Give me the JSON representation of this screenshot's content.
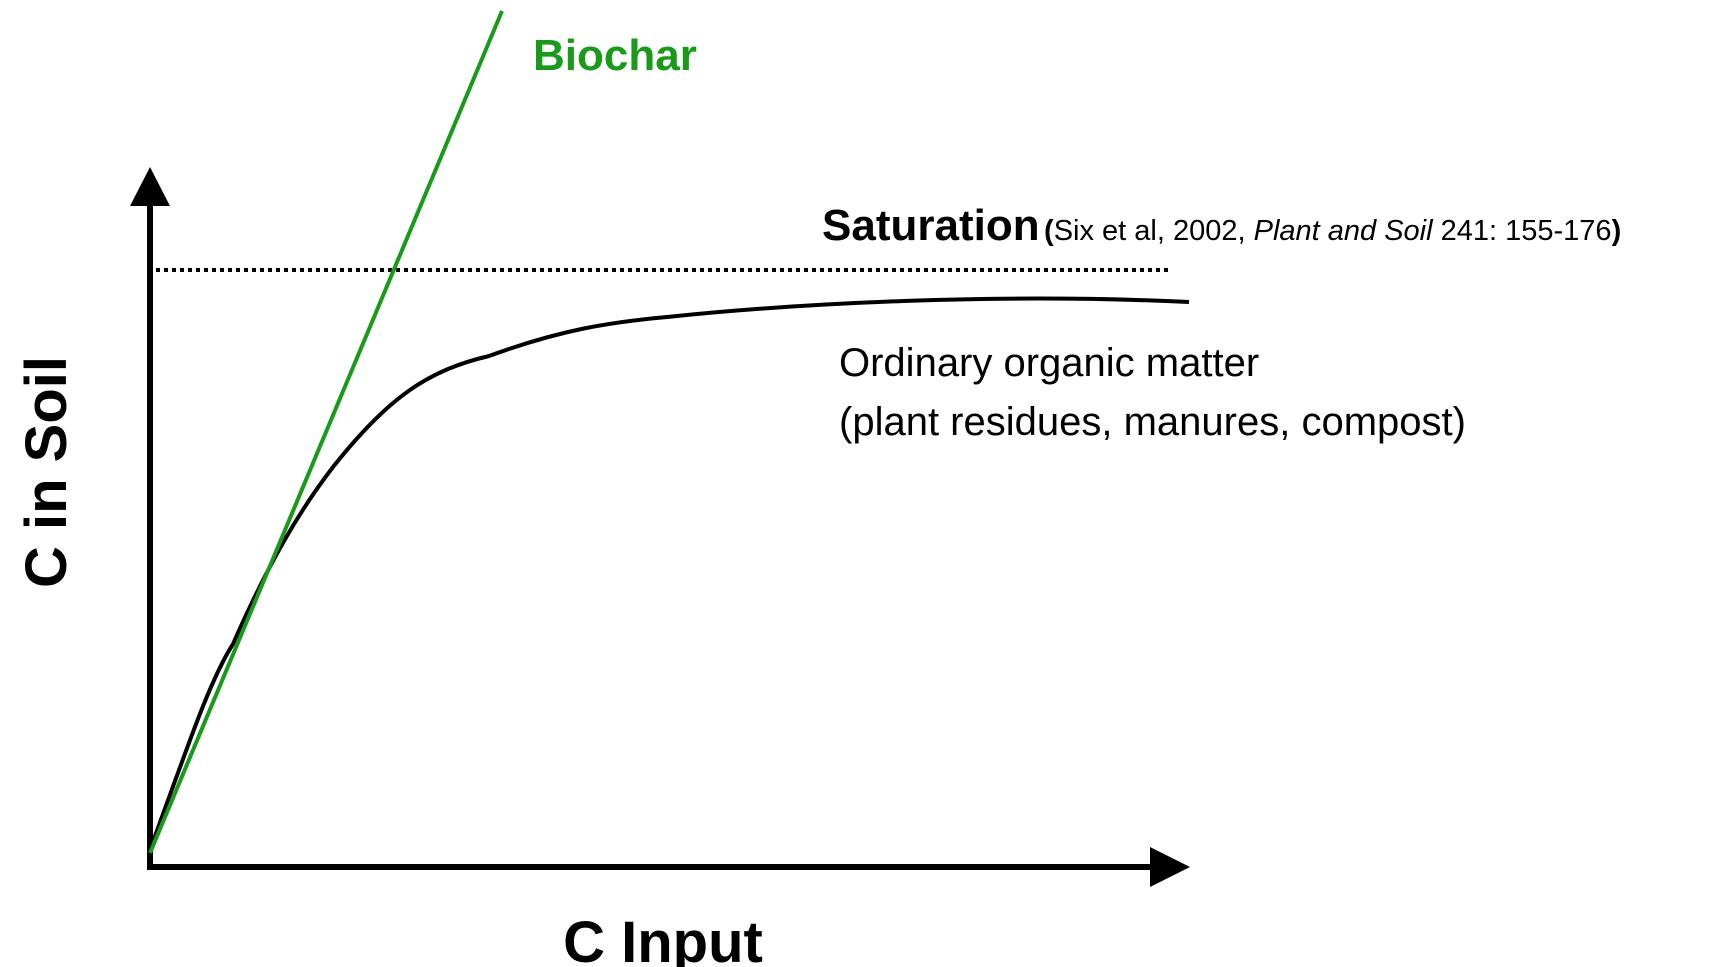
{
  "labels": {
    "y_axis": "C in Soil",
    "x_axis": "C Input",
    "biochar": "Biochar",
    "saturation": "Saturation",
    "citation": {
      "open": "(",
      "authors": "Six et al, 2002, ",
      "journal": "Plant and Soil",
      "pages": " 241: 155-176",
      "close": ")"
    },
    "organic_matter": [
      "Ordinary organic matter",
      "(plant residues, manures, compost)"
    ]
  }
}
